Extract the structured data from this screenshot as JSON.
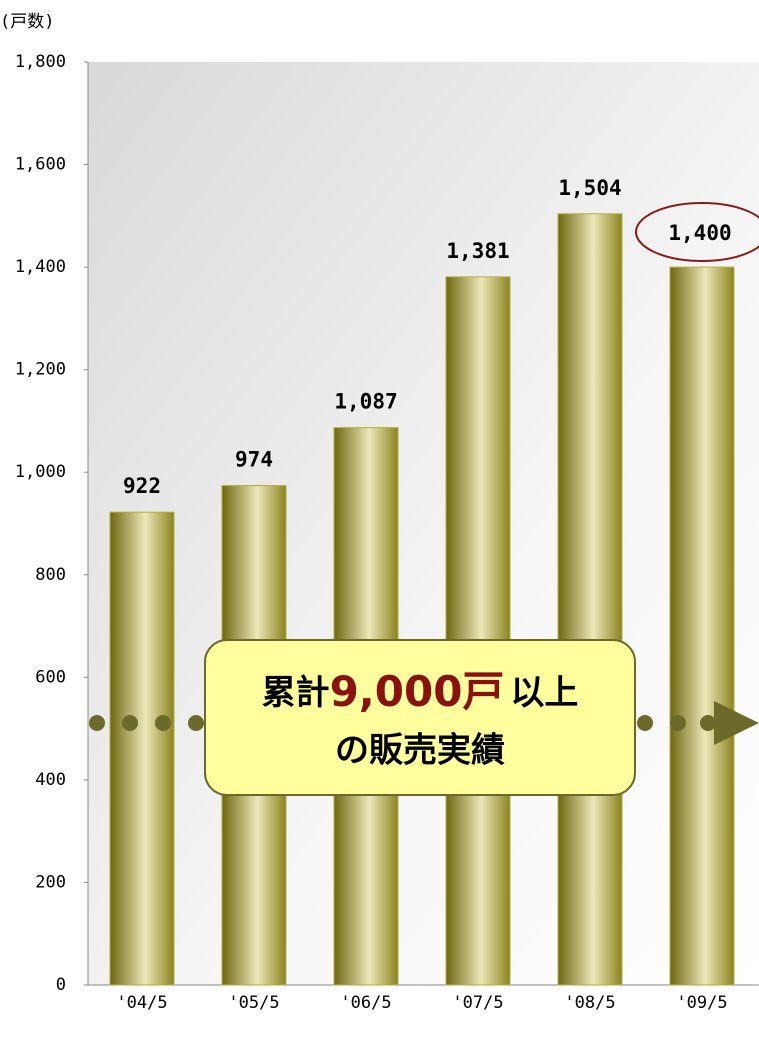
{
  "chart_data": {
    "type": "bar",
    "y_axis_label": "(戸数)",
    "categories": [
      "'04/5",
      "'05/5",
      "'06/5",
      "'07/5",
      "'08/5",
      "'09/5"
    ],
    "values": [
      922,
      974,
      1087,
      1381,
      1504,
      1400
    ],
    "value_labels": [
      "922",
      "974",
      "1,087",
      "1,381",
      "1,504",
      "1,400"
    ],
    "color": "#b5ad3c",
    "ylim": [
      0,
      1800
    ],
    "yticks": [
      0,
      200,
      400,
      600,
      800,
      {
        "value": 1000,
        "label": "1,000"
      },
      {
        "value": 1200,
        "label": "1,200"
      },
      {
        "value": 1400,
        "label": "1,400"
      },
      {
        "value": 1600,
        "label": "1,600"
      },
      {
        "value": 1800,
        "label": "1,800"
      }
    ],
    "grid": false,
    "annotation": {
      "line1": [
        "累計",
        "9,000戸",
        "以上"
      ],
      "line2": "の販売実績"
    }
  }
}
